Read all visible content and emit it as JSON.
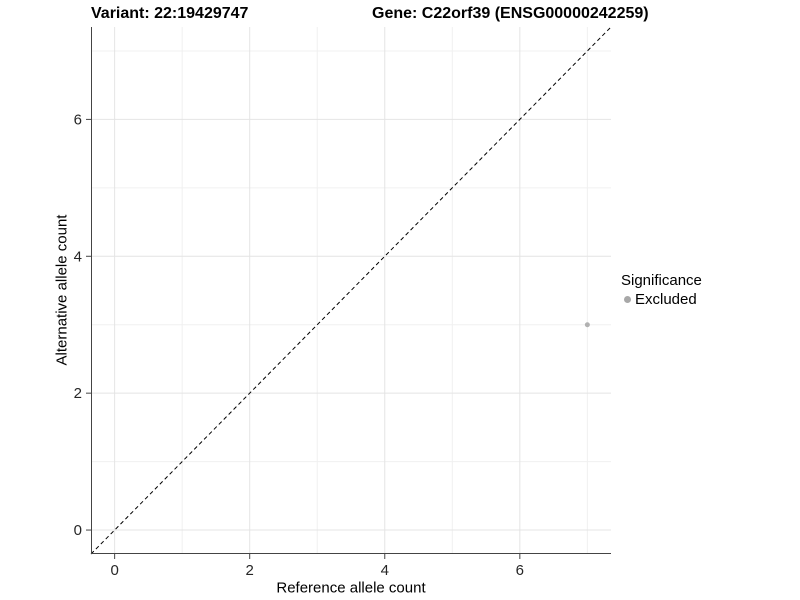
{
  "chart_data": {
    "type": "scatter",
    "title_left": "Variant: 22:19429747",
    "title_right": "Gene: C22orf39 (ENSG00000242259)",
    "xlabel": "Reference allele count",
    "ylabel": "Alternative allele count",
    "xlim": [
      -0.35,
      7.35
    ],
    "ylim": [
      -0.35,
      7.35
    ],
    "x_ticks": [
      0,
      2,
      4,
      6
    ],
    "y_ticks": [
      0,
      2,
      4,
      6
    ],
    "x_minor_gridlines": [
      1,
      3,
      5,
      7
    ],
    "y_minor_gridlines": [
      1,
      3,
      5,
      7
    ],
    "grid": true,
    "reference_line": {
      "type": "identity y=x",
      "style": "dashed",
      "color": "#000000"
    },
    "series": [
      {
        "name": "Excluded",
        "color": "#b1b1b1",
        "points": [
          {
            "x": 7,
            "y": 3
          }
        ]
      }
    ],
    "legend": {
      "title": "Significance",
      "position": "right",
      "items": [
        {
          "label": "Excluded",
          "color": "#a8a8a8"
        }
      ]
    },
    "colors": {
      "background": "#ffffff",
      "grid_major": "#e4e4e4",
      "grid_minor": "#f0f0f0",
      "axis_line": "#444444",
      "tick_label": "#262626",
      "point": "#b1b1b1"
    }
  }
}
